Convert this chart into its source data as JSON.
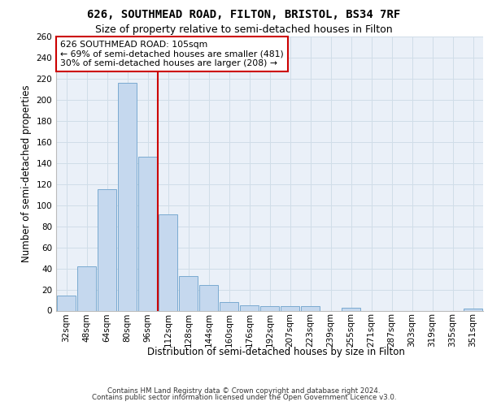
{
  "title1": "626, SOUTHMEAD ROAD, FILTON, BRISTOL, BS34 7RF",
  "title2": "Size of property relative to semi-detached houses in Filton",
  "xlabel": "Distribution of semi-detached houses by size in Filton",
  "ylabel": "Number of semi-detached properties",
  "categories": [
    "32sqm",
    "48sqm",
    "64sqm",
    "80sqm",
    "96sqm",
    "112sqm",
    "128sqm",
    "144sqm",
    "160sqm",
    "176sqm",
    "192sqm",
    "207sqm",
    "223sqm",
    "239sqm",
    "255sqm",
    "271sqm",
    "287sqm",
    "303sqm",
    "319sqm",
    "335sqm",
    "351sqm"
  ],
  "values": [
    14,
    42,
    115,
    216,
    146,
    91,
    33,
    24,
    8,
    5,
    4,
    4,
    4,
    0,
    3,
    0,
    0,
    0,
    0,
    0,
    2
  ],
  "bar_color": "#c5d8ee",
  "bar_edge_color": "#7aaad0",
  "grid_color": "#d0dde8",
  "plot_bg_color": "#eaf0f8",
  "fig_bg_color": "#ffffff",
  "vline_x": 4.5,
  "vline_color": "#cc0000",
  "annotation_line1": "626 SOUTHMEAD ROAD: 105sqm",
  "annotation_line2": "← 69% of semi-detached houses are smaller (481)",
  "annotation_line3": "30% of semi-detached houses are larger (208) →",
  "annotation_box_facecolor": "#ffffff",
  "annotation_box_edgecolor": "#cc0000",
  "ylim": [
    0,
    260
  ],
  "yticks": [
    0,
    20,
    40,
    60,
    80,
    100,
    120,
    140,
    160,
    180,
    200,
    220,
    240,
    260
  ],
  "footer1": "Contains HM Land Registry data © Crown copyright and database right 2024.",
  "footer2": "Contains public sector information licensed under the Open Government Licence v3.0."
}
